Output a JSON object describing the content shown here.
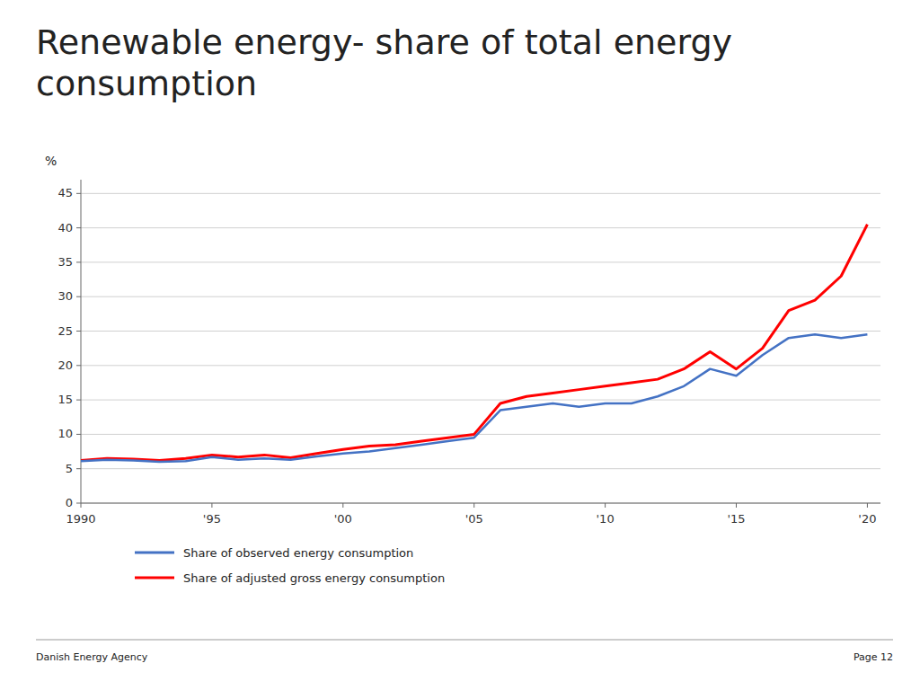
{
  "chart_data": {
    "type": "line",
    "title": "Renewable energy- share of total energy consumption",
    "y_label": "%",
    "annotations": [
      "Danish Energy Agency",
      "Page 12"
    ],
    "x": [
      1990,
      1991,
      1992,
      1993,
      1994,
      1995,
      1996,
      1997,
      1998,
      1999,
      2000,
      2001,
      2002,
      2003,
      2004,
      2005,
      2006,
      2007,
      2008,
      2009,
      2010,
      2011,
      2012,
      2013,
      2014,
      2015,
      2016,
      2017,
      2018,
      2019,
      2020
    ],
    "series": [
      {
        "name": "Share of observed energy consumption",
        "color": "#4472C4",
        "values": [
          6.1,
          6.3,
          6.2,
          6.0,
          6.1,
          6.7,
          6.3,
          6.5,
          6.3,
          6.8,
          7.2,
          7.5,
          8.0,
          8.5,
          9.0,
          9.5,
          13.5,
          14.0,
          14.5,
          14.0,
          14.5,
          14.5,
          15.5,
          17.0,
          19.5,
          18.5,
          21.5,
          24.0,
          24.5,
          24.0,
          24.5
        ]
      },
      {
        "name": "Share of adjusted gross energy consumption",
        "color": "#FF0000",
        "values": [
          6.2,
          6.5,
          6.4,
          6.2,
          6.5,
          7.0,
          6.7,
          7.0,
          6.6,
          7.2,
          7.8,
          8.3,
          8.5,
          9.0,
          9.5,
          10.0,
          14.5,
          15.5,
          16.0,
          16.5,
          17.0,
          17.5,
          18.0,
          19.5,
          22.0,
          19.5,
          22.5,
          28.0,
          29.5,
          33.0,
          40.5
        ]
      }
    ],
    "xlim": [
      1990,
      2020.5
    ],
    "xticks": [
      1990,
      {
        "value": 1995,
        "label": "'95"
      },
      {
        "value": 2000,
        "label": "'00"
      },
      {
        "value": 2005,
        "label": "'05"
      },
      {
        "value": 2010,
        "label": "'10"
      },
      {
        "value": 2015,
        "label": "'15"
      },
      {
        "value": 2020,
        "label": "'20"
      }
    ],
    "ylim": [
      0,
      47
    ],
    "yticks": [
      0,
      5,
      10,
      15,
      20,
      25,
      30,
      35,
      40,
      45
    ],
    "grid": true,
    "legend": "bottom"
  }
}
